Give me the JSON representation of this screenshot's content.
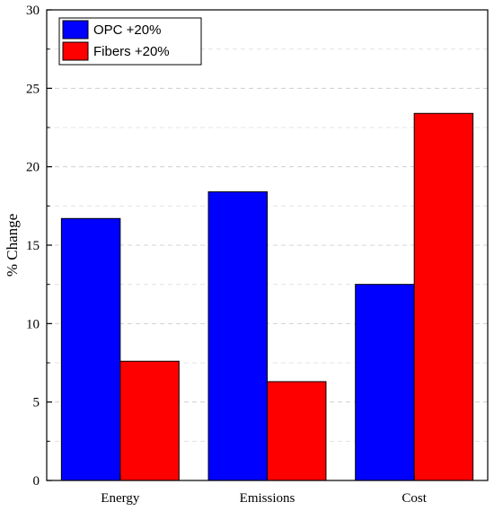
{
  "chart_data": {
    "type": "bar",
    "categories": [
      "Energy",
      "Emissions",
      "Cost"
    ],
    "series": [
      {
        "name": "OPC +20%",
        "color": "#0000ff",
        "values": [
          16.7,
          18.4,
          12.5
        ]
      },
      {
        "name": "Fibers +20%",
        "color": "#ff0000",
        "values": [
          7.6,
          6.3,
          23.4
        ]
      }
    ],
    "ylabel": "% Change",
    "xlabel": "",
    "ylim": [
      0,
      30
    ],
    "yticks": [
      0,
      5,
      10,
      15,
      20,
      25,
      30
    ],
    "grid": true,
    "legend_position": "top-left"
  }
}
